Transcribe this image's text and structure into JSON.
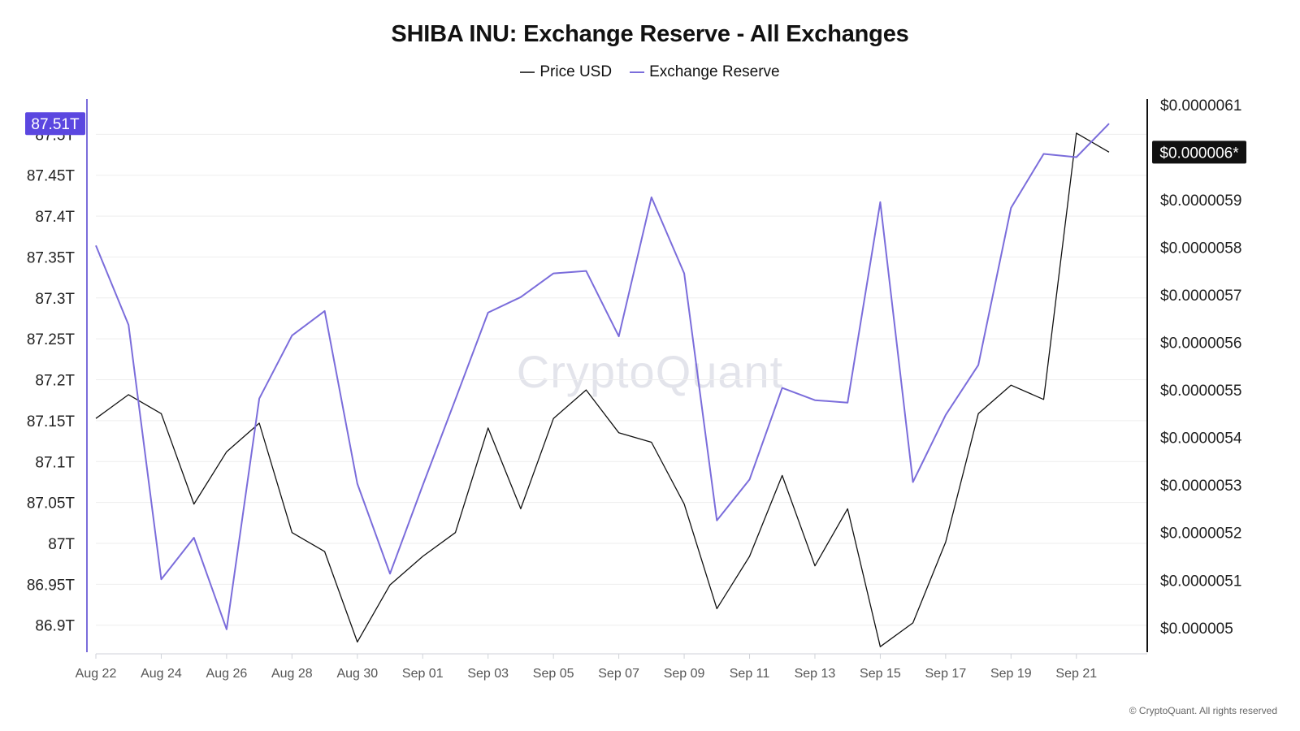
{
  "footer": "© CryptoQuant. All rights reserved",
  "watermark": "CryptoQuant",
  "chart_data": {
    "type": "line",
    "title": "SHIBA INU: Exchange Reserve - All Exchanges",
    "x": [
      "Aug 22",
      "Aug 23",
      "Aug 24",
      "Aug 25",
      "Aug 26",
      "Aug 27",
      "Aug 28",
      "Aug 29",
      "Aug 30",
      "Aug 31",
      "Sep 01",
      "Sep 02",
      "Sep 03",
      "Sep 04",
      "Sep 05",
      "Sep 06",
      "Sep 07",
      "Sep 08",
      "Sep 09",
      "Sep 10",
      "Sep 11",
      "Sep 12",
      "Sep 13",
      "Sep 14",
      "Sep 15",
      "Sep 16",
      "Sep 17",
      "Sep 18",
      "Sep 19",
      "Sep 20",
      "Sep 21",
      "Sep 22"
    ],
    "x_ticks": [
      "Aug 22",
      "Aug 24",
      "Aug 26",
      "Aug 28",
      "Aug 30",
      "Sep 01",
      "Sep 03",
      "Sep 05",
      "Sep 07",
      "Sep 09",
      "Sep 11",
      "Sep 13",
      "Sep 15",
      "Sep 17",
      "Sep 19",
      "Sep 21"
    ],
    "series": [
      {
        "name": "Price USD",
        "axis": "right",
        "color": "#111111",
        "values": [
          5.44e-06,
          5.49e-06,
          5.45e-06,
          5.26e-06,
          5.37e-06,
          5.43e-06,
          5.2e-06,
          5.16e-06,
          4.97e-06,
          5.09e-06,
          5.15e-06,
          5.2e-06,
          5.42e-06,
          5.25e-06,
          5.44e-06,
          5.5e-06,
          5.41e-06,
          5.39e-06,
          5.26e-06,
          5.04e-06,
          5.15e-06,
          5.32e-06,
          5.13e-06,
          5.25e-06,
          4.96e-06,
          5.01e-06,
          5.18e-06,
          5.45e-06,
          5.51e-06,
          5.48e-06,
          6.04e-06,
          6e-06
        ]
      },
      {
        "name": "Exchange Reserve",
        "axis": "left",
        "color": "#7b6ddb",
        "values": [
          87.364,
          87.267,
          86.956,
          87.007,
          86.895,
          87.177,
          87.254,
          87.284,
          87.073,
          86.963,
          87.071,
          87.176,
          87.282,
          87.301,
          87.33,
          87.333,
          87.253,
          87.423,
          87.33,
          87.028,
          87.078,
          87.19,
          87.175,
          87.172,
          87.417,
          87.075,
          87.157,
          87.218,
          87.41,
          87.476,
          87.472,
          87.513
        ]
      }
    ],
    "left_axis": {
      "ticks": [
        "87.5T",
        "87.45T",
        "87.4T",
        "87.35T",
        "87.3T",
        "87.25T",
        "87.2T",
        "87.15T",
        "87.1T",
        "87.05T",
        "87T",
        "86.95T",
        "86.9T"
      ],
      "ylim": [
        86.865,
        87.545
      ]
    },
    "right_axis": {
      "ticks": [
        "$0.0000061",
        "$0.0000059",
        "$0.0000058",
        "$0.0000057",
        "$0.0000056",
        "$0.0000055",
        "$0.0000054",
        "$0.0000053",
        "$0.0000052",
        "$0.0000051",
        "$0.000005"
      ],
      "ylim": [
        4.945e-06,
        6.115e-06
      ]
    },
    "badges": {
      "left": "87.51T",
      "right": "$0.000006*"
    },
    "legend_position": "top-center",
    "grid": true,
    "colors": {
      "reserve": "#7b6ddb",
      "price": "#111111",
      "left_badge": "#5b47e0",
      "right_badge": "#111111"
    }
  }
}
